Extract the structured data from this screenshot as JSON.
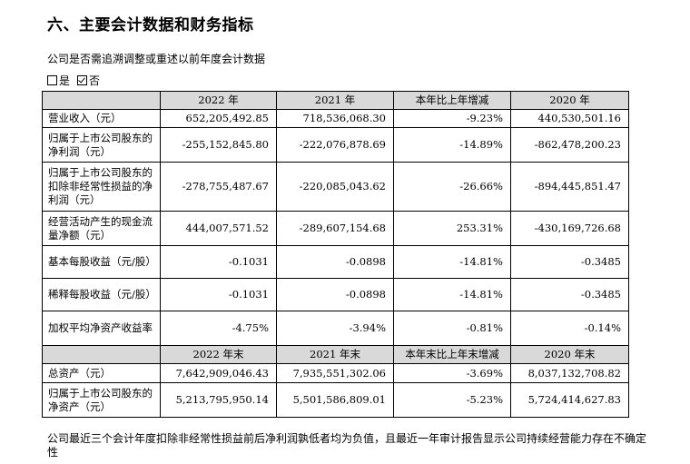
{
  "section_title": "六、主要会计数据和财务指标",
  "question": "公司是否需追溯调整或重述以前年度会计数据",
  "options": {
    "yes": "是",
    "no": "否"
  },
  "table": {
    "headers1": [
      "2022 年",
      "2021 年",
      "本年比上年增减",
      "2020 年"
    ],
    "rows1": [
      {
        "label": "营业收入（元）",
        "values": [
          "652,205,492.85",
          "718,536,068.30",
          "-9.23%",
          "440,530,501.16"
        ]
      },
      {
        "label": "归属于上市公司股东的净利润（元）",
        "values": [
          "-255,152,845.80",
          "-222,076,878.69",
          "-14.89%",
          "-862,478,200.23"
        ]
      },
      {
        "label": "归属于上市公司股东的扣除非经常性损益的净利润（元）",
        "values": [
          "-278,755,487.67",
          "-220,085,043.62",
          "-26.66%",
          "-894,445,851.47"
        ]
      },
      {
        "label": "经营活动产生的现金流量净额（元）",
        "values": [
          "444,007,571.52",
          "-289,607,154.68",
          "253.31%",
          "-430,169,726.68"
        ]
      },
      {
        "label": "基本每股收益（元/股）",
        "values": [
          "-0.1031",
          "-0.0898",
          "-14.81%",
          "-0.3485"
        ]
      },
      {
        "label": "稀释每股收益（元/股）",
        "values": [
          "-0.1031",
          "-0.0898",
          "-14.81%",
          "-0.3485"
        ]
      },
      {
        "label": "加权平均净资产收益率",
        "values": [
          "-4.75%",
          "-3.94%",
          "-0.81%",
          "-0.14%"
        ]
      }
    ],
    "headers2": [
      "2022 年末",
      "2021 年末",
      "本年末比上年末增减",
      "2020 年末"
    ],
    "rows2": [
      {
        "label": "总资产（元）",
        "values": [
          "7,642,909,046.43",
          "7,935,551,302.06",
          "-3.69%",
          "8,037,132,708.82"
        ]
      },
      {
        "label": "归属于上市公司股东的净资产（元）",
        "values": [
          "5,213,795,950.14",
          "5,501,586,809.01",
          "-5.23%",
          "5,724,414,627.83"
        ]
      }
    ]
  },
  "footnote": "公司最近三个会计年度扣除非经常性损益前后净利润孰低者均为负值，且最近一年审计报告显示公司持续经营能力存在不确定性"
}
